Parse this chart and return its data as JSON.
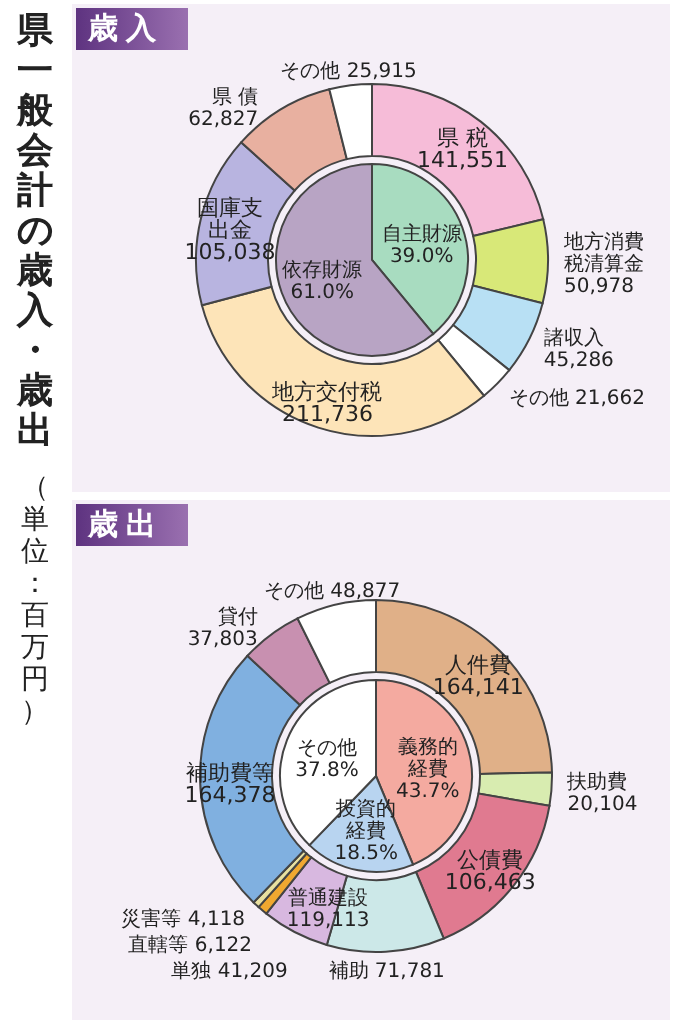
{
  "chart_data": [
    {
      "type": "other",
      "title": "県一般会計の歳入・歳出",
      "subtitle": "（単位：百万円）"
    },
    {
      "type": "donut",
      "title": "歳入",
      "categories": [
        "県 税",
        "地方消費税清算金",
        "諸収入",
        "その他",
        "地方交付税",
        "国庫支出金",
        "県 債",
        "その他"
      ],
      "values": [
        141551,
        50978,
        45286,
        21662,
        211736,
        105038,
        62827,
        25915
      ],
      "value_labels": [
        "141,551",
        "50,978",
        "45,286",
        "21,662",
        "211,736",
        "105,038",
        "62,827",
        "25,915"
      ],
      "colors": [
        "#f6bcd8",
        "#d8e878",
        "#b8e0f4",
        "#ffffff",
        "#fde4b8",
        "#b8b4e0",
        "#e8b0a0",
        "#ffffff"
      ]
    },
    {
      "type": "pie",
      "categories": [
        "自主財源",
        "依存財源"
      ],
      "values": [
        39.0,
        61.0
      ],
      "value_labels": [
        "39.0%",
        "61.0%"
      ],
      "colors": [
        "#a8dcc0",
        "#b8a4c4"
      ]
    },
    {
      "type": "donut",
      "title": "歳出",
      "annotations": [
        "普通建設 119,113"
      ],
      "categories": [
        "人件費",
        "扶助費",
        "公債費",
        "補助",
        "単独",
        "直轄等",
        "災害等",
        "補助費等",
        "貸付",
        "その他"
      ],
      "values": [
        164141,
        20104,
        106463,
        71781,
        41209,
        6122,
        4118,
        164378,
        37803,
        48877
      ],
      "value_labels": [
        "164,141",
        "20,104",
        "106,463",
        "71,781",
        "41,209",
        "6,122",
        "4,118",
        "164,378",
        "37,803",
        "48,877"
      ],
      "colors": [
        "#e0b088",
        "#d8ecb0",
        "#e07a90",
        "#cce8e8",
        "#d8b8e0",
        "#f0a830",
        "#e8e0a0",
        "#80b0e0",
        "#c890b0",
        "#ffffff"
      ]
    },
    {
      "type": "pie",
      "categories": [
        "義務的経費",
        "投資的経費",
        "その他"
      ],
      "values": [
        43.7,
        18.5,
        37.8
      ],
      "value_labels": [
        "43.7%",
        "18.5%",
        "37.8%"
      ],
      "colors": [
        "#f4aaa0",
        "#b8d4f0",
        "#ffffff"
      ]
    }
  ]
}
